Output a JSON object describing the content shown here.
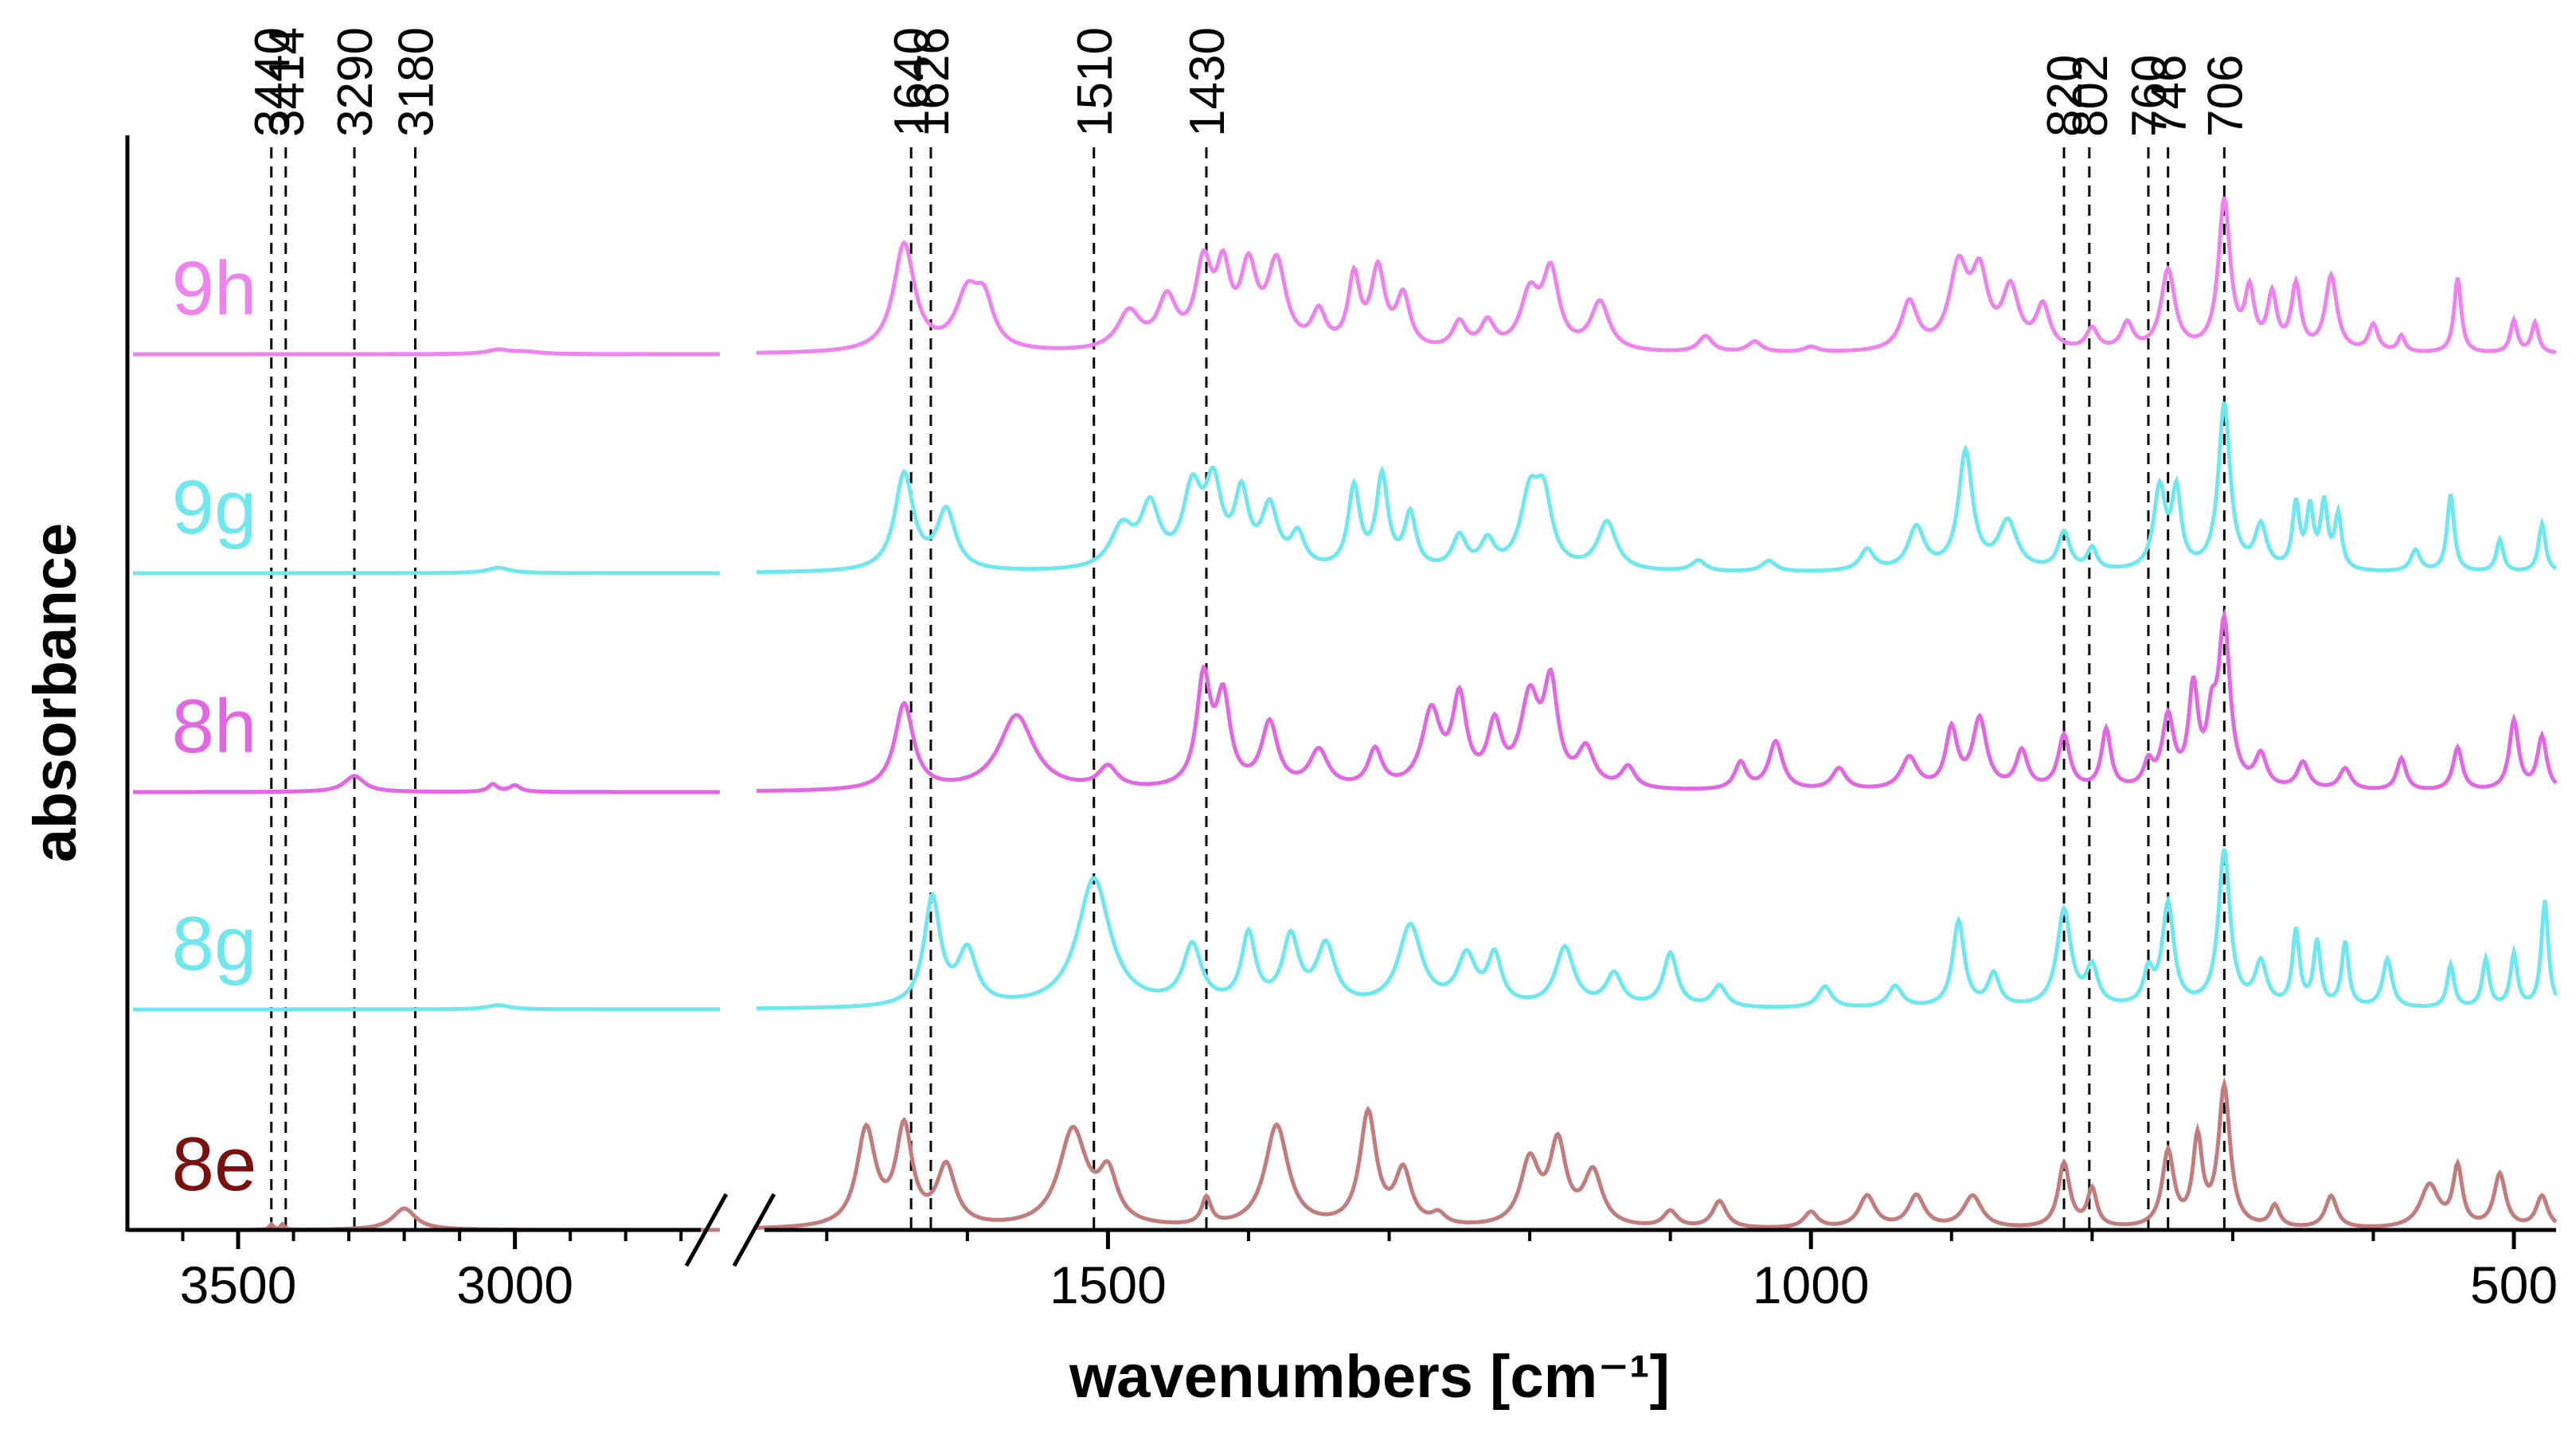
{
  "chart_data": {
    "type": "line",
    "xlabel": "wavenumbers [cm⁻¹]",
    "ylabel": "absorbance",
    "x_reversed": true,
    "axis_break": true,
    "x_segments": [
      [
        3700,
        2650
      ],
      [
        1750,
        470
      ]
    ],
    "xticks": [
      3500,
      3000,
      1500,
      1000,
      500
    ],
    "xtick_labels": [
      "3500",
      "3000",
      "1500",
      "1000",
      "500"
    ],
    "peak_lines": [
      3440,
      3414,
      3290,
      3180,
      1640,
      1626,
      1510,
      1430,
      820,
      802,
      760,
      746,
      706
    ],
    "peak_labels": [
      "3440",
      "3414",
      "3290",
      "3180",
      "1640",
      "1626",
      "1510",
      "1430",
      "820",
      "802",
      "760",
      "746",
      "706"
    ],
    "series": [
      {
        "name": "9h",
        "color": "#ee82ee",
        "peaks": [
          [
            3030,
            0.04,
            25
          ],
          [
            2980,
            0.02,
            30
          ],
          [
            1645,
            1.0,
            9
          ],
          [
            1600,
            0.5,
            10
          ],
          [
            1588,
            0.4,
            8
          ],
          [
            1485,
            0.35,
            10
          ],
          [
            1458,
            0.45,
            8
          ],
          [
            1432,
            0.75,
            7
          ],
          [
            1418,
            0.65,
            6
          ],
          [
            1400,
            0.7,
            7
          ],
          [
            1380,
            0.78,
            8
          ],
          [
            1350,
            0.32,
            6
          ],
          [
            1325,
            0.65,
            5
          ],
          [
            1308,
            0.72,
            6
          ],
          [
            1290,
            0.48,
            6
          ],
          [
            1250,
            0.25,
            6
          ],
          [
            1230,
            0.25,
            6
          ],
          [
            1200,
            0.5,
            8
          ],
          [
            1185,
            0.7,
            7
          ],
          [
            1150,
            0.45,
            8
          ],
          [
            1075,
            0.15,
            6
          ],
          [
            1040,
            0.1,
            6
          ],
          [
            1000,
            0.05,
            6
          ],
          [
            930,
            0.45,
            7
          ],
          [
            895,
            0.75,
            8
          ],
          [
            880,
            0.65,
            7
          ],
          [
            858,
            0.55,
            7
          ],
          [
            835,
            0.4,
            6
          ],
          [
            800,
            0.2,
            5
          ],
          [
            775,
            0.25,
            5
          ],
          [
            746,
            0.75,
            6
          ],
          [
            706,
            1.4,
            5
          ],
          [
            688,
            0.52,
            4
          ],
          [
            672,
            0.5,
            4
          ],
          [
            655,
            0.6,
            4
          ],
          [
            630,
            0.7,
            5
          ],
          [
            600,
            0.25,
            4
          ],
          [
            580,
            0.15,
            3
          ],
          [
            540,
            0.7,
            3
          ],
          [
            500,
            0.3,
            3
          ],
          [
            485,
            0.28,
            3
          ]
        ],
        "label_value_x": 3620
      },
      {
        "name": "9g",
        "color": "#6ee8ee",
        "peaks": [
          [
            3030,
            0.05,
            25
          ],
          [
            1645,
            0.9,
            8
          ],
          [
            1615,
            0.55,
            8
          ],
          [
            1490,
            0.38,
            10
          ],
          [
            1470,
            0.55,
            8
          ],
          [
            1440,
            0.7,
            8
          ],
          [
            1425,
            0.72,
            7
          ],
          [
            1405,
            0.65,
            6
          ],
          [
            1385,
            0.55,
            7
          ],
          [
            1365,
            0.3,
            6
          ],
          [
            1325,
            0.75,
            5
          ],
          [
            1305,
            0.85,
            5
          ],
          [
            1285,
            0.5,
            5
          ],
          [
            1250,
            0.3,
            6
          ],
          [
            1230,
            0.25,
            6
          ],
          [
            1200,
            0.65,
            8
          ],
          [
            1190,
            0.6,
            7
          ],
          [
            1145,
            0.45,
            8
          ],
          [
            1080,
            0.1,
            6
          ],
          [
            1030,
            0.1,
            6
          ],
          [
            960,
            0.2,
            6
          ],
          [
            925,
            0.4,
            7
          ],
          [
            890,
            1.1,
            6
          ],
          [
            860,
            0.45,
            8
          ],
          [
            820,
            0.35,
            5
          ],
          [
            800,
            0.2,
            4
          ],
          [
            752,
            0.75,
            5
          ],
          [
            740,
            0.7,
            4
          ],
          [
            706,
            1.55,
            5
          ],
          [
            680,
            0.4,
            5
          ],
          [
            655,
            0.6,
            3
          ],
          [
            645,
            0.55,
            3
          ],
          [
            635,
            0.6,
            3
          ],
          [
            625,
            0.5,
            3
          ],
          [
            570,
            0.2,
            4
          ],
          [
            545,
            0.72,
            3
          ],
          [
            510,
            0.3,
            3
          ],
          [
            480,
            0.45,
            3
          ]
        ],
        "label_value_x": 3620
      },
      {
        "name": "8h",
        "color": "#e267e2",
        "peaks": [
          [
            3290,
            0.15,
            22
          ],
          [
            3040,
            0.07,
            10
          ],
          [
            3000,
            0.06,
            12
          ],
          [
            1645,
            0.8,
            8
          ],
          [
            1565,
            0.7,
            15
          ],
          [
            1500,
            0.2,
            8
          ],
          [
            1432,
            1.0,
            6
          ],
          [
            1418,
            0.8,
            6
          ],
          [
            1385,
            0.6,
            7
          ],
          [
            1350,
            0.35,
            8
          ],
          [
            1310,
            0.35,
            6
          ],
          [
            1270,
            0.7,
            8
          ],
          [
            1250,
            0.8,
            6
          ],
          [
            1225,
            0.55,
            6
          ],
          [
            1200,
            0.8,
            8
          ],
          [
            1185,
            0.9,
            6
          ],
          [
            1160,
            0.35,
            7
          ],
          [
            1130,
            0.2,
            6
          ],
          [
            1050,
            0.25,
            5
          ],
          [
            1025,
            0.45,
            6
          ],
          [
            980,
            0.2,
            6
          ],
          [
            930,
            0.3,
            7
          ],
          [
            900,
            0.55,
            5
          ],
          [
            880,
            0.65,
            6
          ],
          [
            850,
            0.35,
            5
          ],
          [
            820,
            0.5,
            5
          ],
          [
            790,
            0.55,
            4
          ],
          [
            760,
            0.22,
            4
          ],
          [
            746,
            0.65,
            5
          ],
          [
            728,
            0.9,
            4
          ],
          [
            715,
            0.5,
            4
          ],
          [
            706,
            1.5,
            5
          ],
          [
            680,
            0.3,
            5
          ],
          [
            650,
            0.25,
            5
          ],
          [
            620,
            0.2,
            5
          ],
          [
            580,
            0.3,
            4
          ],
          [
            540,
            0.4,
            4
          ],
          [
            500,
            0.65,
            4
          ],
          [
            480,
            0.5,
            4
          ]
        ],
        "label_value_x": 3620
      },
      {
        "name": "8g",
        "color": "#6ee8ee",
        "peaks": [
          [
            3030,
            0.04,
            25
          ],
          [
            1625,
            1.0,
            7
          ],
          [
            1600,
            0.5,
            8
          ],
          [
            1510,
            1.2,
            14
          ],
          [
            1440,
            0.55,
            8
          ],
          [
            1400,
            0.65,
            6
          ],
          [
            1370,
            0.62,
            7
          ],
          [
            1345,
            0.55,
            8
          ],
          [
            1285,
            0.75,
            10
          ],
          [
            1245,
            0.45,
            8
          ],
          [
            1225,
            0.45,
            6
          ],
          [
            1175,
            0.55,
            8
          ],
          [
            1140,
            0.3,
            7
          ],
          [
            1100,
            0.5,
            6
          ],
          [
            1065,
            0.2,
            6
          ],
          [
            990,
            0.2,
            6
          ],
          [
            940,
            0.2,
            6
          ],
          [
            895,
            0.8,
            5
          ],
          [
            870,
            0.3,
            5
          ],
          [
            820,
            0.9,
            6
          ],
          [
            800,
            0.35,
            5
          ],
          [
            760,
            0.3,
            4
          ],
          [
            746,
            0.95,
            5
          ],
          [
            706,
            1.45,
            5
          ],
          [
            680,
            0.4,
            5
          ],
          [
            655,
            0.7,
            3
          ],
          [
            640,
            0.6,
            3
          ],
          [
            620,
            0.6,
            3
          ],
          [
            590,
            0.45,
            4
          ],
          [
            545,
            0.4,
            3
          ],
          [
            520,
            0.45,
            3
          ],
          [
            500,
            0.5,
            3
          ],
          [
            478,
            1.0,
            3
          ]
        ],
        "label_value_x": 3620
      },
      {
        "name": "8e",
        "color": "#c27c7c",
        "peaks": [
          [
            3440,
            0.05,
            4
          ],
          [
            3420,
            0.05,
            4
          ],
          [
            3200,
            0.2,
            25
          ],
          [
            1672,
            0.9,
            8
          ],
          [
            1645,
            0.9,
            7
          ],
          [
            1615,
            0.55,
            8
          ],
          [
            1525,
            0.9,
            12
          ],
          [
            1500,
            0.45,
            8
          ],
          [
            1430,
            0.25,
            4
          ],
          [
            1380,
            0.95,
            10
          ],
          [
            1315,
            1.05,
            7
          ],
          [
            1290,
            0.5,
            7
          ],
          [
            1265,
            0.1,
            6
          ],
          [
            1200,
            0.6,
            8
          ],
          [
            1180,
            0.75,
            7
          ],
          [
            1155,
            0.5,
            8
          ],
          [
            1100,
            0.15,
            6
          ],
          [
            1065,
            0.25,
            6
          ],
          [
            1000,
            0.15,
            6
          ],
          [
            960,
            0.3,
            7
          ],
          [
            925,
            0.3,
            7
          ],
          [
            885,
            0.3,
            8
          ],
          [
            820,
            0.6,
            5
          ],
          [
            800,
            0.35,
            4
          ],
          [
            746,
            0.7,
            5
          ],
          [
            725,
            0.8,
            4
          ],
          [
            706,
            1.3,
            5
          ],
          [
            670,
            0.2,
            4
          ],
          [
            630,
            0.3,
            5
          ],
          [
            560,
            0.4,
            8
          ],
          [
            540,
            0.55,
            4
          ],
          [
            510,
            0.5,
            5
          ],
          [
            480,
            0.3,
            5
          ]
        ],
        "label_value_x": 3620
      }
    ]
  }
}
